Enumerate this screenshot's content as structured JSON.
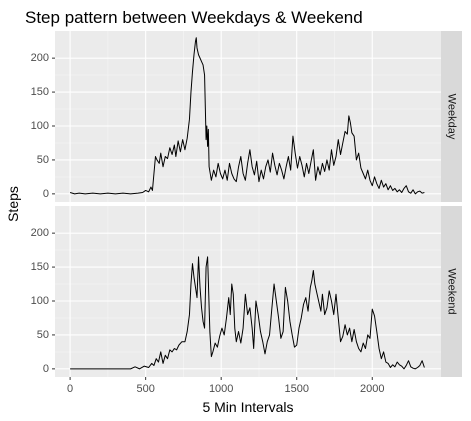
{
  "chart_data": {
    "type": "line",
    "title": "Step pattern between Weekdays & Weekend",
    "xlabel": "5 Min Intervals",
    "ylabel": "Steps",
    "xlim": [
      -100,
      2455
    ],
    "ylim": [
      -12,
      240
    ],
    "x_ticks": [
      0,
      500,
      1000,
      1500,
      2000
    ],
    "y_ticks": [
      0,
      50,
      100,
      150,
      200
    ],
    "grid": true,
    "facets": [
      {
        "name": "Weekday",
        "points": [
          [
            0,
            2
          ],
          [
            30,
            0
          ],
          [
            60,
            1
          ],
          [
            100,
            0
          ],
          [
            150,
            1
          ],
          [
            200,
            0
          ],
          [
            250,
            1
          ],
          [
            300,
            0
          ],
          [
            350,
            1
          ],
          [
            400,
            0
          ],
          [
            450,
            1
          ],
          [
            480,
            2
          ],
          [
            500,
            5
          ],
          [
            520,
            3
          ],
          [
            535,
            10
          ],
          [
            545,
            5
          ],
          [
            555,
            30
          ],
          [
            565,
            55
          ],
          [
            575,
            50
          ],
          [
            590,
            45
          ],
          [
            600,
            60
          ],
          [
            615,
            40
          ],
          [
            630,
            55
          ],
          [
            645,
            52
          ],
          [
            660,
            68
          ],
          [
            675,
            58
          ],
          [
            690,
            72
          ],
          [
            700,
            55
          ],
          [
            715,
            78
          ],
          [
            730,
            62
          ],
          [
            745,
            80
          ],
          [
            760,
            65
          ],
          [
            775,
            82
          ],
          [
            790,
            110
          ],
          [
            800,
            150
          ],
          [
            810,
            180
          ],
          [
            820,
            205
          ],
          [
            830,
            225
          ],
          [
            835,
            230
          ],
          [
            840,
            215
          ],
          [
            850,
            205
          ],
          [
            860,
            200
          ],
          [
            870,
            195
          ],
          [
            880,
            190
          ],
          [
            890,
            175
          ],
          [
            900,
            80
          ],
          [
            905,
            100
          ],
          [
            910,
            70
          ],
          [
            915,
            95
          ],
          [
            920,
            40
          ],
          [
            935,
            20
          ],
          [
            950,
            35
          ],
          [
            965,
            25
          ],
          [
            980,
            45
          ],
          [
            995,
            30
          ],
          [
            1010,
            22
          ],
          [
            1025,
            35
          ],
          [
            1040,
            20
          ],
          [
            1055,
            45
          ],
          [
            1070,
            30
          ],
          [
            1085,
            22
          ],
          [
            1100,
            18
          ],
          [
            1115,
            40
          ],
          [
            1130,
            55
          ],
          [
            1145,
            30
          ],
          [
            1160,
            20
          ],
          [
            1175,
            45
          ],
          [
            1190,
            65
          ],
          [
            1205,
            40
          ],
          [
            1220,
            28
          ],
          [
            1235,
            48
          ],
          [
            1250,
            18
          ],
          [
            1265,
            35
          ],
          [
            1280,
            22
          ],
          [
            1295,
            40
          ],
          [
            1310,
            50
          ],
          [
            1325,
            32
          ],
          [
            1340,
            60
          ],
          [
            1355,
            42
          ],
          [
            1370,
            28
          ],
          [
            1385,
            45
          ],
          [
            1400,
            35
          ],
          [
            1415,
            22
          ],
          [
            1430,
            40
          ],
          [
            1445,
            55
          ],
          [
            1460,
            35
          ],
          [
            1475,
            85
          ],
          [
            1490,
            60
          ],
          [
            1505,
            38
          ],
          [
            1520,
            55
          ],
          [
            1535,
            42
          ],
          [
            1550,
            25
          ],
          [
            1565,
            45
          ],
          [
            1580,
            30
          ],
          [
            1595,
            48
          ],
          [
            1610,
            65
          ],
          [
            1625,
            20
          ],
          [
            1640,
            40
          ],
          [
            1655,
            28
          ],
          [
            1670,
            45
          ],
          [
            1685,
            33
          ],
          [
            1700,
            50
          ],
          [
            1715,
            35
          ],
          [
            1730,
            65
          ],
          [
            1745,
            42
          ],
          [
            1760,
            55
          ],
          [
            1775,
            80
          ],
          [
            1790,
            58
          ],
          [
            1805,
            75
          ],
          [
            1820,
            92
          ],
          [
            1835,
            88
          ],
          [
            1845,
            115
          ],
          [
            1855,
            105
          ],
          [
            1865,
            90
          ],
          [
            1880,
            85
          ],
          [
            1895,
            50
          ],
          [
            1910,
            60
          ],
          [
            1925,
            38
          ],
          [
            1940,
            30
          ],
          [
            1955,
            22
          ],
          [
            1970,
            35
          ],
          [
            1985,
            20
          ],
          [
            2000,
            12
          ],
          [
            2015,
            25
          ],
          [
            2030,
            15
          ],
          [
            2045,
            8
          ],
          [
            2060,
            20
          ],
          [
            2075,
            10
          ],
          [
            2090,
            15
          ],
          [
            2105,
            6
          ],
          [
            2120,
            12
          ],
          [
            2135,
            5
          ],
          [
            2150,
            8
          ],
          [
            2165,
            3
          ],
          [
            2180,
            6
          ],
          [
            2195,
            2
          ],
          [
            2210,
            8
          ],
          [
            2225,
            12
          ],
          [
            2240,
            3
          ],
          [
            2255,
            1
          ],
          [
            2270,
            6
          ],
          [
            2285,
            0
          ],
          [
            2300,
            3
          ],
          [
            2315,
            4
          ],
          [
            2330,
            1
          ],
          [
            2345,
            2
          ]
        ]
      },
      {
        "name": "Weekend",
        "points": [
          [
            0,
            0
          ],
          [
            50,
            0
          ],
          [
            100,
            0
          ],
          [
            150,
            0
          ],
          [
            200,
            0
          ],
          [
            250,
            0
          ],
          [
            300,
            0
          ],
          [
            350,
            0
          ],
          [
            400,
            0
          ],
          [
            430,
            3
          ],
          [
            460,
            0
          ],
          [
            490,
            4
          ],
          [
            520,
            2
          ],
          [
            540,
            8
          ],
          [
            555,
            5
          ],
          [
            570,
            15
          ],
          [
            585,
            10
          ],
          [
            600,
            25
          ],
          [
            615,
            8
          ],
          [
            630,
            20
          ],
          [
            645,
            15
          ],
          [
            660,
            28
          ],
          [
            675,
            25
          ],
          [
            690,
            30
          ],
          [
            705,
            28
          ],
          [
            720,
            35
          ],
          [
            740,
            40
          ],
          [
            760,
            40
          ],
          [
            775,
            55
          ],
          [
            790,
            80
          ],
          [
            800,
            125
          ],
          [
            810,
            155
          ],
          [
            820,
            135
          ],
          [
            830,
            120
          ],
          [
            840,
            105
          ],
          [
            850,
            165
          ],
          [
            860,
            120
          ],
          [
            870,
            90
          ],
          [
            880,
            70
          ],
          [
            890,
            60
          ],
          [
            900,
            150
          ],
          [
            910,
            165
          ],
          [
            915,
            130
          ],
          [
            925,
            55
          ],
          [
            935,
            18
          ],
          [
            945,
            25
          ],
          [
            960,
            38
          ],
          [
            975,
            32
          ],
          [
            990,
            48
          ],
          [
            1005,
            60
          ],
          [
            1020,
            50
          ],
          [
            1035,
            75
          ],
          [
            1050,
            105
          ],
          [
            1060,
            80
          ],
          [
            1070,
            125
          ],
          [
            1080,
            110
          ],
          [
            1090,
            60
          ],
          [
            1100,
            40
          ],
          [
            1115,
            55
          ],
          [
            1130,
            38
          ],
          [
            1145,
            60
          ],
          [
            1160,
            110
          ],
          [
            1175,
            80
          ],
          [
            1190,
            90
          ],
          [
            1205,
            60
          ],
          [
            1215,
            30
          ],
          [
            1230,
            100
          ],
          [
            1245,
            80
          ],
          [
            1260,
            55
          ],
          [
            1275,
            40
          ],
          [
            1290,
            22
          ],
          [
            1305,
            40
          ],
          [
            1320,
            50
          ],
          [
            1335,
            88
          ],
          [
            1350,
            125
          ],
          [
            1365,
            100
          ],
          [
            1380,
            75
          ],
          [
            1395,
            45
          ],
          [
            1410,
            55
          ],
          [
            1425,
            120
          ],
          [
            1440,
            100
          ],
          [
            1455,
            70
          ],
          [
            1470,
            50
          ],
          [
            1485,
            32
          ],
          [
            1500,
            35
          ],
          [
            1515,
            60
          ],
          [
            1530,
            75
          ],
          [
            1545,
            95
          ],
          [
            1560,
            105
          ],
          [
            1575,
            85
          ],
          [
            1590,
            120
          ],
          [
            1600,
            130
          ],
          [
            1610,
            145
          ],
          [
            1620,
            125
          ],
          [
            1635,
            110
          ],
          [
            1650,
            95
          ],
          [
            1660,
            85
          ],
          [
            1670,
            110
          ],
          [
            1685,
            80
          ],
          [
            1700,
            90
          ],
          [
            1715,
            115
          ],
          [
            1730,
            100
          ],
          [
            1745,
            80
          ],
          [
            1760,
            110
          ],
          [
            1775,
            75
          ],
          [
            1790,
            40
          ],
          [
            1805,
            48
          ],
          [
            1820,
            65
          ],
          [
            1835,
            50
          ],
          [
            1850,
            60
          ],
          [
            1865,
            40
          ],
          [
            1880,
            58
          ],
          [
            1895,
            40
          ],
          [
            1910,
            30
          ],
          [
            1925,
            25
          ],
          [
            1940,
            38
          ],
          [
            1955,
            30
          ],
          [
            1970,
            50
          ],
          [
            1985,
            45
          ],
          [
            2000,
            88
          ],
          [
            2015,
            78
          ],
          [
            2030,
            55
          ],
          [
            2045,
            30
          ],
          [
            2060,
            15
          ],
          [
            2075,
            25
          ],
          [
            2090,
            10
          ],
          [
            2105,
            8
          ],
          [
            2120,
            2
          ],
          [
            2135,
            6
          ],
          [
            2150,
            3
          ],
          [
            2165,
            10
          ],
          [
            2180,
            6
          ],
          [
            2195,
            4
          ],
          [
            2210,
            0
          ],
          [
            2225,
            5
          ],
          [
            2240,
            12
          ],
          [
            2255,
            3
          ],
          [
            2270,
            1
          ],
          [
            2285,
            0
          ],
          [
            2300,
            2
          ],
          [
            2315,
            5
          ],
          [
            2330,
            12
          ],
          [
            2345,
            2
          ]
        ]
      }
    ]
  }
}
